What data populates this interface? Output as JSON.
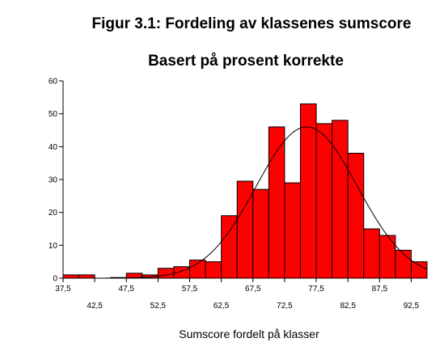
{
  "chart_data": {
    "type": "bar",
    "title": "Figur 3.1: Fordeling av klassenes sumscore",
    "subtitle": "Basert på prosent korrekte",
    "xlabel": "Sumscore fordelt på klasser",
    "ylabel": "",
    "ylim": [
      0,
      60
    ],
    "yticks": [
      "0",
      "10",
      "20",
      "30",
      "40",
      "50",
      "60"
    ],
    "xlim": [
      37.5,
      95
    ],
    "xticks_top": [
      "37,5",
      "47,5",
      "57,5",
      "67,5",
      "77,5",
      "87,5"
    ],
    "xticks_bottom": [
      "42,5",
      "52,5",
      "62,5",
      "72,5",
      "82,5",
      "92,5"
    ],
    "bin_width": 2.5,
    "bins": [
      {
        "start": 37.5,
        "value": 1
      },
      {
        "start": 40.0,
        "value": 1
      },
      {
        "start": 45.0,
        "value": 0.2
      },
      {
        "start": 47.5,
        "value": 1.5
      },
      {
        "start": 50.0,
        "value": 1
      },
      {
        "start": 52.5,
        "value": 3
      },
      {
        "start": 55.0,
        "value": 3.5
      },
      {
        "start": 57.5,
        "value": 5.5
      },
      {
        "start": 60.0,
        "value": 5
      },
      {
        "start": 62.5,
        "value": 19
      },
      {
        "start": 65.0,
        "value": 29.5
      },
      {
        "start": 67.5,
        "value": 27
      },
      {
        "start": 70.0,
        "value": 46
      },
      {
        "start": 72.5,
        "value": 29
      },
      {
        "start": 75.0,
        "value": 53
      },
      {
        "start": 77.5,
        "value": 47
      },
      {
        "start": 80.0,
        "value": 48
      },
      {
        "start": 82.5,
        "value": 38
      },
      {
        "start": 85.0,
        "value": 15
      },
      {
        "start": 87.5,
        "value": 13
      },
      {
        "start": 90.0,
        "value": 8.5
      },
      {
        "start": 92.5,
        "value": 5
      }
    ],
    "normal_curve": {
      "mean": 76,
      "sd": 8,
      "peak": 46
    },
    "bar_color": "#ff0000",
    "grid": false
  }
}
